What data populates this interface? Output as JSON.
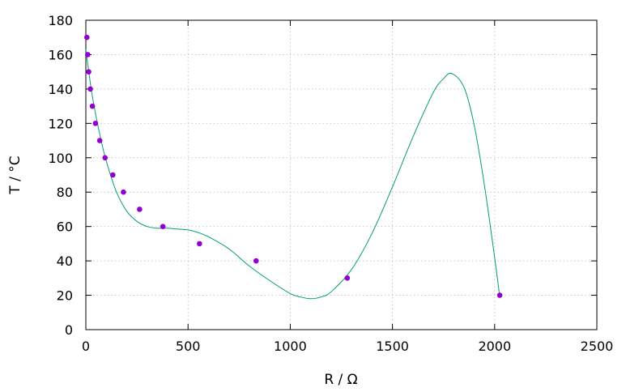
{
  "chart_data": {
    "type": "scatter",
    "title": "",
    "xlabel": "R / Ω",
    "ylabel": "T / °C",
    "xlim": [
      0,
      2500
    ],
    "ylim": [
      0,
      180
    ],
    "xticks": [
      0,
      500,
      1000,
      1500,
      2000,
      2500
    ],
    "yticks": [
      0,
      20,
      40,
      60,
      80,
      100,
      120,
      140,
      160,
      180
    ],
    "xtick_labels": [
      "0",
      "500",
      "1000",
      "1500",
      "2000",
      "2500"
    ],
    "ytick_labels": [
      "0",
      "20",
      "40",
      "60",
      "80",
      "100",
      "120",
      "140",
      "160",
      "180"
    ],
    "grid": true,
    "legend": "none",
    "colors": {
      "points": "#9400d3",
      "curve": "#009e73"
    },
    "series": [
      {
        "kind": "points",
        "x": [
          5,
          9,
          14,
          22,
          32,
          47,
          68,
          94,
          132,
          184,
          263,
          377,
          556,
          833,
          1279,
          2025
        ],
        "y": [
          170,
          160,
          150,
          140,
          130,
          120,
          110,
          100,
          90,
          80,
          70,
          60,
          50,
          40,
          30,
          20
        ]
      },
      {
        "kind": "fit-curve",
        "x": [
          0,
          25,
          50,
          75,
          100,
          150,
          200,
          250,
          300,
          350,
          400,
          450,
          500,
          550,
          600,
          700,
          800,
          900,
          1000,
          1050,
          1100,
          1150,
          1200,
          1300,
          1400,
          1500,
          1600,
          1700,
          1750,
          1790,
          1850,
          1900,
          1950,
          2000,
          2025
        ],
        "y": [
          163,
          141,
          124,
          110,
          98,
          80,
          69,
          63,
          60,
          59,
          59,
          58.5,
          58,
          56.5,
          54,
          47,
          37,
          28.5,
          21,
          19,
          18,
          19,
          22,
          35,
          56,
          83,
          112,
          138,
          146,
          149,
          141,
          119,
          84,
          42,
          19
        ]
      }
    ]
  }
}
